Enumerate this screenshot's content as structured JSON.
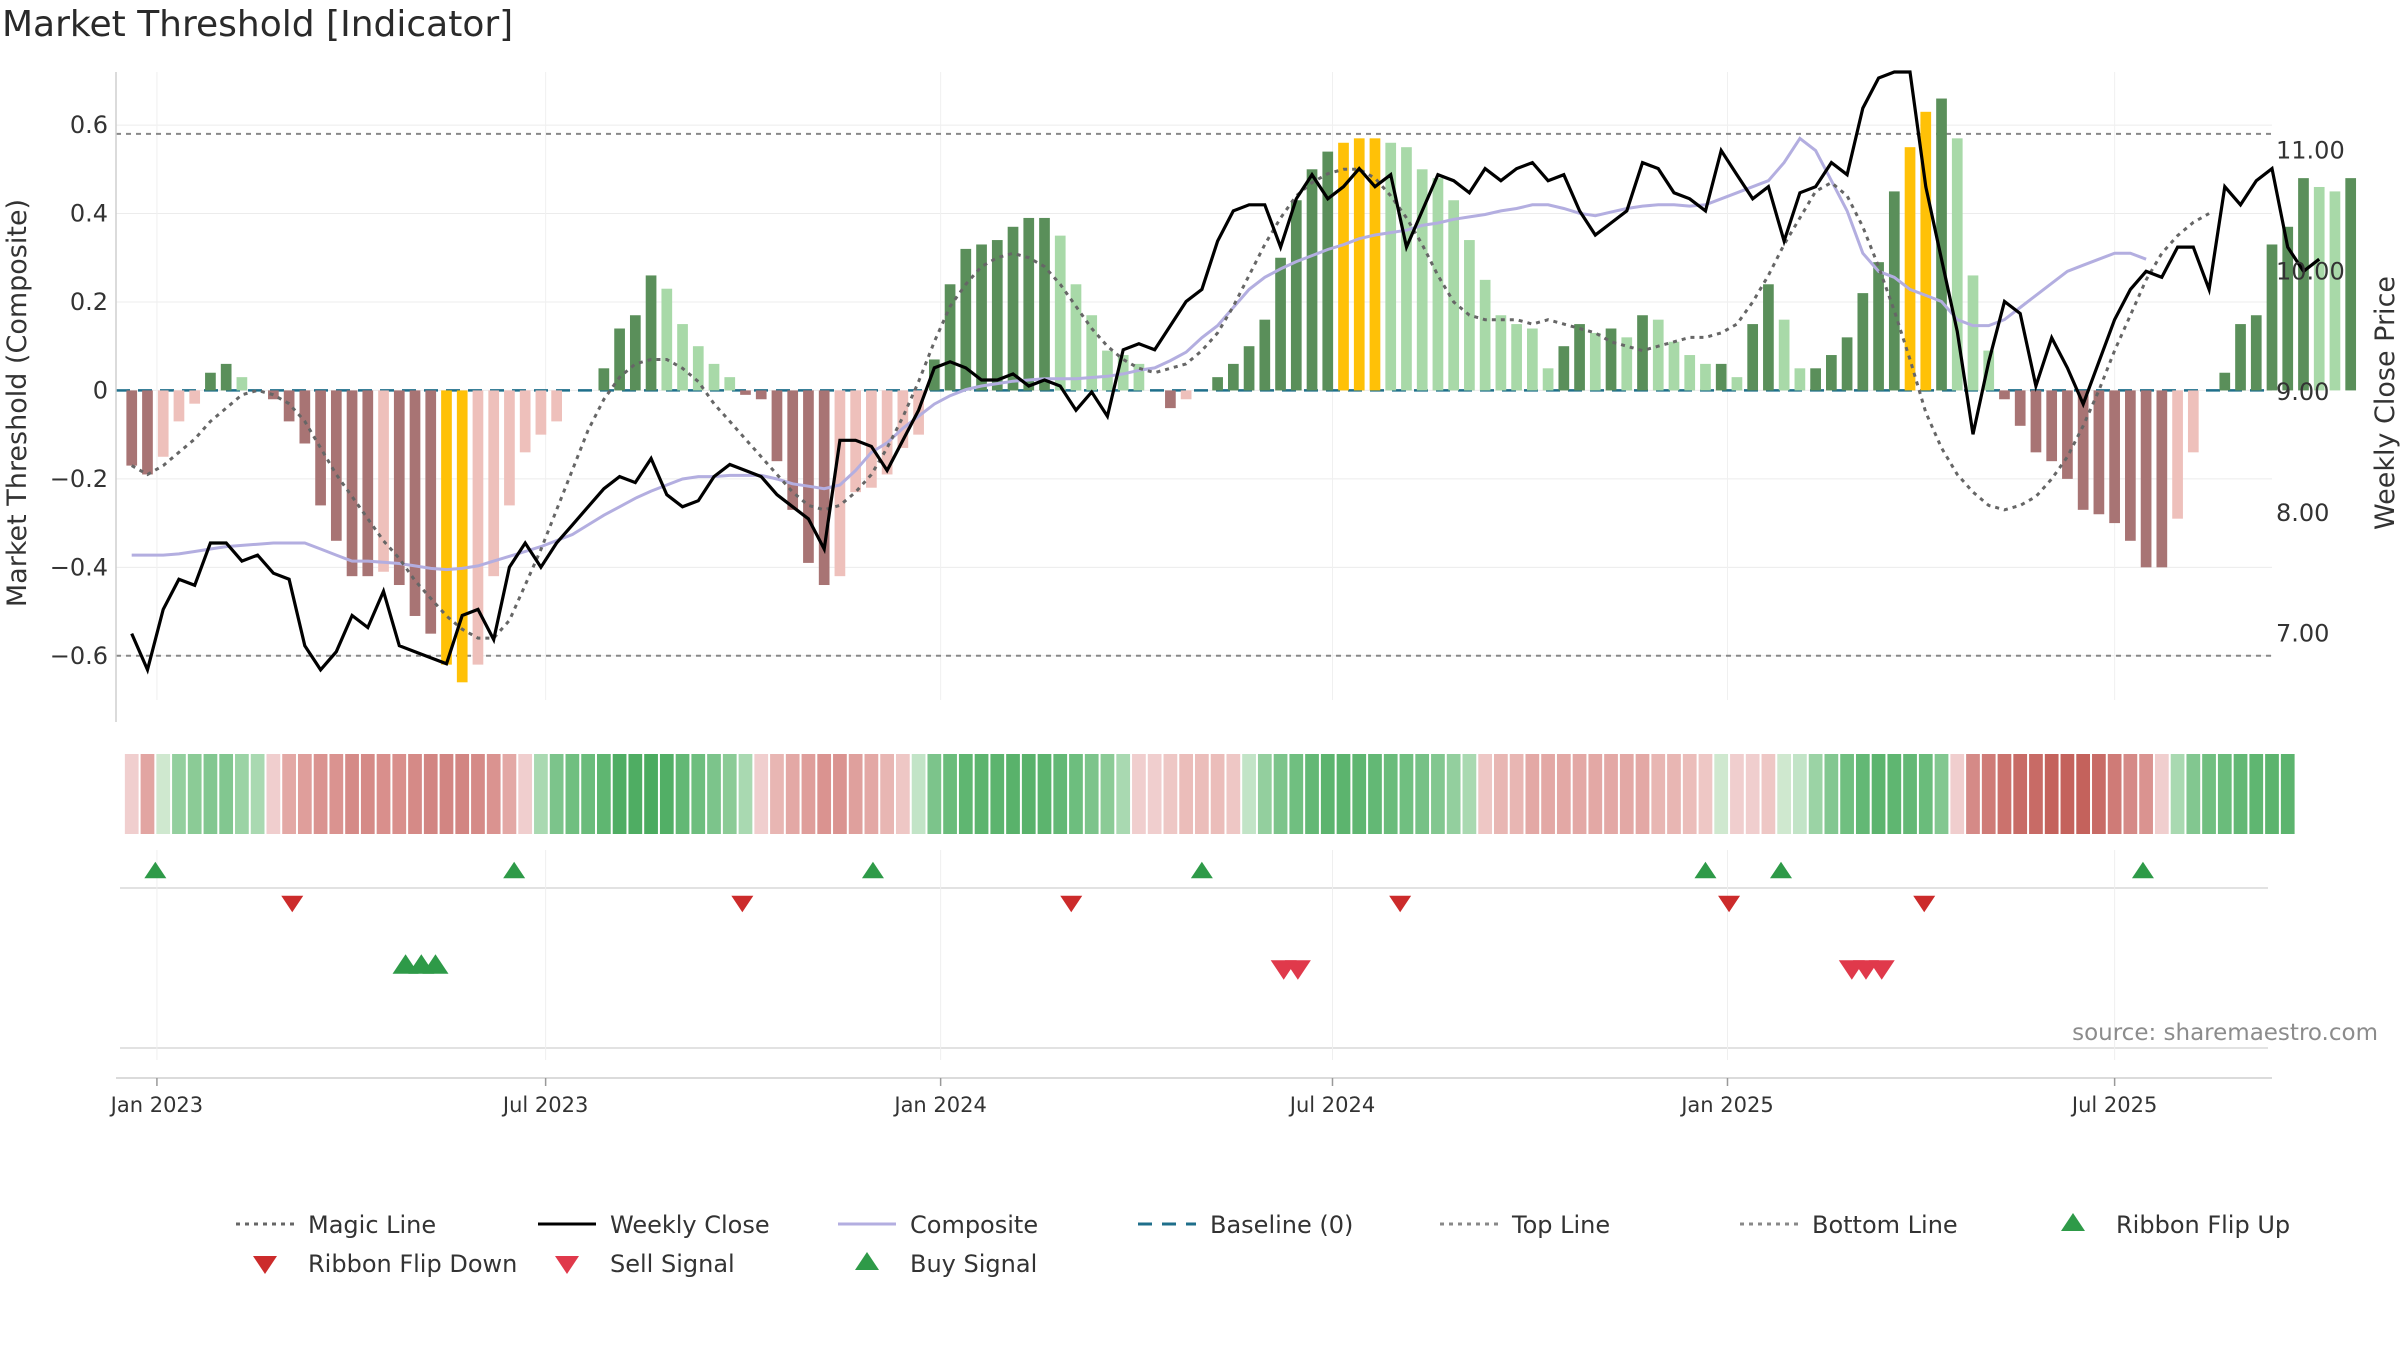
{
  "chart_data": {
    "type": "bar",
    "title": "Market Threshold [Indicator]",
    "ylabel_left": "Market Threshold (Composite)",
    "ylabel_right": "Weekly Close Price",
    "source": "source: sharemaestro.com",
    "ylim_left": [
      -0.7,
      0.72
    ],
    "ylim_right": [
      6.45,
      11.65
    ],
    "yticks_left": [
      "0.6",
      "0.4",
      "0.2",
      "0",
      "−0.2",
      "−0.4",
      "−0.6"
    ],
    "yticks_left_values": [
      0.6,
      0.4,
      0.2,
      0,
      -0.2,
      -0.4,
      -0.6
    ],
    "yticks_right": [
      "11.00",
      "10.00",
      "9.00",
      "8.00",
      "7.00"
    ],
    "yticks_right_values": [
      11,
      10,
      9,
      8,
      7
    ],
    "x_range_weeks": [
      -1,
      136
    ],
    "xticks": [
      "Jan 2023",
      "Jul 2023",
      "Jan 2024",
      "Jul 2024",
      "Jan 2025",
      "Jul 2025"
    ],
    "xticks_weeks": [
      1.6,
      26.3,
      51.4,
      76.3,
      101.4,
      126.0
    ],
    "top_line": 0.58,
    "bottom_line": -0.6,
    "bars": [
      -0.17,
      -0.19,
      -0.15,
      -0.07,
      -0.03,
      0.04,
      0.06,
      0.03,
      0.0,
      -0.02,
      -0.07,
      -0.12,
      -0.26,
      -0.34,
      -0.42,
      -0.42,
      -0.41,
      -0.44,
      -0.51,
      -0.55,
      -0.62,
      -0.66,
      -0.62,
      -0.42,
      -0.26,
      -0.14,
      -0.1,
      -0.07,
      0.0,
      0.0,
      0.05,
      0.14,
      0.17,
      0.26,
      0.23,
      0.15,
      0.1,
      0.06,
      0.03,
      -0.01,
      -0.02,
      -0.16,
      -0.27,
      -0.39,
      -0.44,
      -0.42,
      -0.23,
      -0.22,
      -0.19,
      -0.13,
      -0.1,
      0.07,
      0.24,
      0.32,
      0.33,
      0.34,
      0.37,
      0.39,
      0.39,
      0.35,
      0.24,
      0.17,
      0.09,
      0.08,
      0.06,
      0.0,
      -0.04,
      -0.02,
      0.0,
      0.03,
      0.06,
      0.1,
      0.16,
      0.3,
      0.43,
      0.5,
      0.54,
      0.56,
      0.57,
      0.57,
      0.56,
      0.55,
      0.5,
      0.48,
      0.43,
      0.34,
      0.25,
      0.17,
      0.15,
      0.14,
      0.05,
      0.1,
      0.15,
      0.13,
      0.14,
      0.12,
      0.17,
      0.16,
      0.11,
      0.08,
      0.06,
      0.06,
      0.03,
      0.15,
      0.24,
      0.16,
      0.05,
      0.05,
      0.08,
      0.12,
      0.22,
      0.29,
      0.45,
      0.55,
      0.63,
      0.66,
      0.57,
      0.26,
      0.09,
      -0.02,
      -0.08,
      -0.14,
      -0.16,
      -0.2,
      -0.27,
      -0.28,
      -0.3,
      -0.34,
      -0.4,
      -0.4,
      -0.29,
      -0.14,
      0.0,
      0.04,
      0.15,
      0.17,
      0.33,
      0.37,
      0.48,
      0.46,
      0.45,
      0.48
    ],
    "highlighted_bars": [
      20,
      21,
      77,
      78,
      79,
      113,
      114
    ],
    "series": [
      {
        "name": "Magic Line",
        "values": [
          -0.17,
          -0.19,
          -0.17,
          -0.14,
          -0.11,
          -0.07,
          -0.04,
          -0.01,
          0.0,
          -0.01,
          -0.03,
          -0.07,
          -0.13,
          -0.19,
          -0.24,
          -0.29,
          -0.34,
          -0.38,
          -0.43,
          -0.47,
          -0.51,
          -0.54,
          -0.56,
          -0.56,
          -0.52,
          -0.44,
          -0.36,
          -0.27,
          -0.18,
          -0.09,
          -0.02,
          0.03,
          0.06,
          0.07,
          0.07,
          0.05,
          0.02,
          -0.03,
          -0.07,
          -0.11,
          -0.15,
          -0.19,
          -0.23,
          -0.26,
          -0.27,
          -0.26,
          -0.23,
          -0.19,
          -0.13,
          -0.06,
          0.02,
          0.11,
          0.19,
          0.24,
          0.28,
          0.3,
          0.31,
          0.3,
          0.28,
          0.24,
          0.19,
          0.14,
          0.1,
          0.07,
          0.05,
          0.04,
          0.05,
          0.06,
          0.09,
          0.13,
          0.19,
          0.26,
          0.33,
          0.39,
          0.44,
          0.47,
          0.49,
          0.5,
          0.5,
          0.48,
          0.44,
          0.39,
          0.33,
          0.26,
          0.2,
          0.17,
          0.16,
          0.16,
          0.16,
          0.15,
          0.16,
          0.15,
          0.14,
          0.13,
          0.11,
          0.1,
          0.09,
          0.1,
          0.11,
          0.12,
          0.12,
          0.13,
          0.15,
          0.2,
          0.26,
          0.33,
          0.39,
          0.45,
          0.47,
          0.44,
          0.37,
          0.28,
          0.18,
          0.07,
          -0.05,
          -0.13,
          -0.19,
          -0.23,
          -0.26,
          -0.27,
          -0.26,
          -0.24,
          -0.2,
          -0.15,
          -0.08,
          0.0,
          0.09,
          0.17,
          0.25,
          0.31,
          0.35,
          0.38,
          0.4
        ]
      },
      {
        "name": "Weekly Close",
        "values": [
          7.0,
          6.7,
          7.2,
          7.45,
          7.4,
          7.75,
          7.75,
          7.6,
          7.65,
          7.5,
          7.45,
          6.9,
          6.7,
          6.85,
          7.15,
          7.05,
          7.35,
          6.9,
          6.85,
          6.8,
          6.75,
          7.15,
          7.2,
          6.95,
          7.55,
          7.75,
          7.55,
          7.75,
          7.9,
          8.05,
          8.2,
          8.3,
          8.25,
          8.45,
          8.15,
          8.05,
          8.1,
          8.3,
          8.4,
          8.35,
          8.3,
          8.15,
          8.05,
          7.95,
          7.7,
          8.6,
          8.6,
          8.55,
          8.35,
          8.6,
          8.85,
          9.2,
          9.25,
          9.2,
          9.1,
          9.1,
          9.15,
          9.05,
          9.1,
          9.05,
          8.85,
          9.0,
          8.8,
          9.35,
          9.4,
          9.35,
          9.55,
          9.75,
          9.85,
          10.25,
          10.5,
          10.55,
          10.55,
          10.2,
          10.6,
          10.8,
          10.6,
          10.7,
          10.85,
          10.7,
          10.8,
          10.2,
          10.5,
          10.8,
          10.75,
          10.65,
          10.85,
          10.75,
          10.85,
          10.9,
          10.75,
          10.8,
          10.5,
          10.3,
          10.4,
          10.5,
          10.9,
          10.85,
          10.65,
          10.6,
          10.5,
          11.0,
          10.8,
          10.6,
          10.7,
          10.25,
          10.65,
          10.7,
          10.9,
          10.8,
          11.35,
          11.6,
          11.65,
          11.65,
          10.7,
          10.1,
          9.5,
          8.65,
          9.25,
          9.75,
          9.65,
          9.05,
          9.45,
          9.2,
          8.9,
          9.25,
          9.6,
          9.85,
          10.0,
          9.95,
          10.2,
          10.2,
          9.85,
          10.7,
          10.55,
          10.75,
          10.85,
          10.2,
          10.0,
          10.1
        ]
      },
      {
        "name": "Composite",
        "values": [
          7.65,
          7.65,
          7.65,
          7.66,
          7.68,
          7.7,
          7.72,
          7.73,
          7.74,
          7.75,
          7.75,
          7.75,
          7.7,
          7.65,
          7.6,
          7.6,
          7.59,
          7.58,
          7.56,
          7.54,
          7.53,
          7.54,
          7.56,
          7.6,
          7.64,
          7.68,
          7.72,
          7.77,
          7.82,
          7.9,
          7.98,
          8.05,
          8.12,
          8.18,
          8.23,
          8.28,
          8.3,
          8.3,
          8.31,
          8.31,
          8.31,
          8.28,
          8.24,
          8.22,
          8.2,
          8.23,
          8.35,
          8.5,
          8.58,
          8.7,
          8.8,
          8.9,
          8.97,
          9.02,
          9.05,
          9.07,
          9.09,
          9.1,
          9.11,
          9.11,
          9.11,
          9.12,
          9.13,
          9.15,
          9.18,
          9.2,
          9.26,
          9.33,
          9.45,
          9.55,
          9.7,
          9.85,
          9.95,
          10.02,
          10.08,
          10.13,
          10.18,
          10.22,
          10.27,
          10.3,
          10.32,
          10.34,
          10.38,
          10.4,
          10.43,
          10.45,
          10.47,
          10.5,
          10.52,
          10.55,
          10.55,
          10.52,
          10.48,
          10.46,
          10.49,
          10.52,
          10.54,
          10.55,
          10.55,
          10.54,
          10.55,
          10.6,
          10.65,
          10.7,
          10.75,
          10.9,
          11.1,
          11.0,
          10.75,
          10.5,
          10.15,
          10.0,
          9.95,
          9.85,
          9.8,
          9.75,
          9.6,
          9.55,
          9.55,
          9.6,
          9.7,
          9.8,
          9.9,
          10.0,
          10.05,
          10.1,
          10.15,
          10.15,
          10.1
        ]
      }
    ],
    "ribbon_colors": [
      "#f0cece",
      "#e2a5a2",
      "#cfe8cf",
      "#93cf9e",
      "#8bcb96",
      "#82c790",
      "#82c790",
      "#9bd3a5",
      "#a9d9b1",
      "#f0cece",
      "#e3a8a5",
      "#df9e9b",
      "#da9390",
      "#da9390",
      "#d58a87",
      "#d58a87",
      "#d98f8c",
      "#d98f8c",
      "#d58a87",
      "#d28582",
      "#d28582",
      "#d28582",
      "#d58a87",
      "#da9390",
      "#e3a8a5",
      "#f0cece",
      "#a9d9b1",
      "#7cc48b",
      "#70bf80",
      "#6abc7b",
      "#5fb671",
      "#4fad63",
      "#4fad63",
      "#4aab5f",
      "#52af66",
      "#63b875",
      "#6dbe7e",
      "#7cc48b",
      "#8bcb96",
      "#a9d9b1",
      "#f0cece",
      "#e8b6b3",
      "#e3a8a5",
      "#df9e9b",
      "#da9390",
      "#da9390",
      "#dfa09d",
      "#e3a8a5",
      "#e8b6b3",
      "#eec7c5",
      "#c2e4c7",
      "#7cc48b",
      "#6abc7b",
      "#5fb671",
      "#5cb46e",
      "#5cb46e",
      "#59b26b",
      "#59b26b",
      "#5cb46e",
      "#63b875",
      "#6dbe7e",
      "#7cc48b",
      "#8bcb96",
      "#a9d9b1",
      "#f0cece",
      "#f0cece",
      "#eec7c5",
      "#ebbdba",
      "#ebbdba",
      "#ebbdba",
      "#eec7c5",
      "#c2e4c7",
      "#93cf9e",
      "#7cc48b",
      "#70bf80",
      "#63b875",
      "#5cb46e",
      "#5cb46e",
      "#5fb671",
      "#63b875",
      "#6abc7b",
      "#70bf80",
      "#76c186",
      "#82c790",
      "#93cf9e",
      "#a9d9b1",
      "#eec7c5",
      "#e8b6b3",
      "#e8b6b3",
      "#e3a8a5",
      "#e3a8a5",
      "#e3a8a5",
      "#e3a8a5",
      "#e3a8a5",
      "#e3a8a5",
      "#e3a8a5",
      "#e3a8a5",
      "#e8b6b3",
      "#e8b6b3",
      "#ebbdba",
      "#eec7c5",
      "#cfe8cf",
      "#f0cece",
      "#f0cece",
      "#eec7c5",
      "#cfe8cf",
      "#c2e4c7",
      "#9bd3a5",
      "#82c790",
      "#70bf80",
      "#63b875",
      "#5cb46e",
      "#5fb671",
      "#63b875",
      "#6abc7b",
      "#82c790",
      "#f0cece",
      "#d58a87",
      "#cf7b77",
      "#cb726d",
      "#c86b66",
      "#c86b66",
      "#c4625c",
      "#c4625c",
      "#c4625c",
      "#c86b66",
      "#cf7b77",
      "#d58a87",
      "#da9390",
      "#f0cece",
      "#a9d9b1",
      "#82c790",
      "#70bf80",
      "#6abc7b",
      "#63b875",
      "#5fb671",
      "#5cb46e",
      "#5cb46e"
    ],
    "ribbon_flip_up_weeks": [
      1.5,
      24.3,
      47.1,
      68.0,
      100.0,
      104.8,
      127.8
    ],
    "ribbon_flip_down_weeks": [
      10.2,
      38.8,
      59.7,
      80.6,
      101.5,
      113.9
    ],
    "buy_signal_weeks": [
      17.4,
      18.4,
      19.3
    ],
    "sell_signal_weeks": [
      73.2,
      74.1,
      109.3,
      110.2,
      111.2
    ],
    "legend": [
      {
        "label": "Magic Line",
        "symbol": "dotted-line",
        "color": "#666666"
      },
      {
        "label": "Weekly Close",
        "symbol": "solid-line",
        "color": "#000000"
      },
      {
        "label": "Composite",
        "symbol": "solid-line",
        "color": "#b3aee0"
      },
      {
        "label": "Baseline (0)",
        "symbol": "dashed-line",
        "color": "#1f6f8b"
      },
      {
        "label": "Top Line",
        "symbol": "dotted-line",
        "color": "#888888"
      },
      {
        "label": "Bottom Line",
        "symbol": "dotted-line",
        "color": "#888888"
      },
      {
        "label": "Ribbon Flip Up",
        "symbol": "triangle-up",
        "color": "#2e9a48"
      },
      {
        "label": "Ribbon Flip Down",
        "symbol": "triangle-down",
        "color": "#cc2b2b"
      },
      {
        "label": "Sell Signal",
        "symbol": "triangle-down",
        "color": "#e0394b"
      },
      {
        "label": "Buy Signal",
        "symbol": "triangle-up",
        "color": "#2e9a48"
      }
    ],
    "colors": {
      "bar_pos_strong": "#5a8f5a",
      "bar_pos_light": "#a8d9a8",
      "bar_neg_strong": "#a87474",
      "bar_neg_light": "#eec0bb",
      "bar_extreme": "#ffc107",
      "magic_line": "#666666",
      "weekly_close": "#000000",
      "composite": "#b3aee0",
      "baseline": "#1f6f8b",
      "threshold_lines": "#888888"
    }
  }
}
